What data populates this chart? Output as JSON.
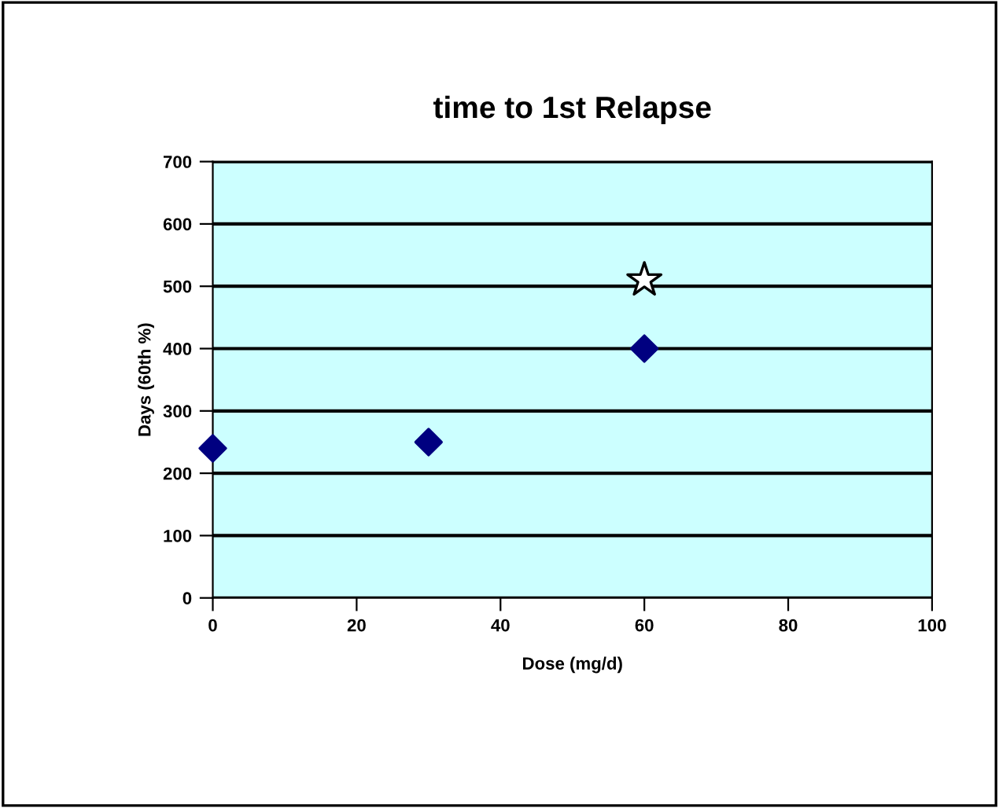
{
  "chart_data": {
    "type": "scatter",
    "title": "time to 1st Relapse",
    "xlabel": "Dose (mg/d)",
    "ylabel": "Days (60th %)",
    "xlim": [
      0,
      100
    ],
    "xticks": [
      0,
      20,
      40,
      60,
      80,
      100
    ],
    "ylim": [
      0,
      700
    ],
    "yticks": [
      0,
      100,
      200,
      300,
      400,
      500,
      600,
      700
    ],
    "grid": "y",
    "series": [
      {
        "color": "#000080",
        "marker": "diamond",
        "x": [
          0,
          30,
          60
        ],
        "values": [
          240,
          250,
          400
        ]
      },
      {
        "color": "#ffffff",
        "marker": "star",
        "x": [
          60
        ],
        "values": [
          510
        ]
      }
    ]
  }
}
